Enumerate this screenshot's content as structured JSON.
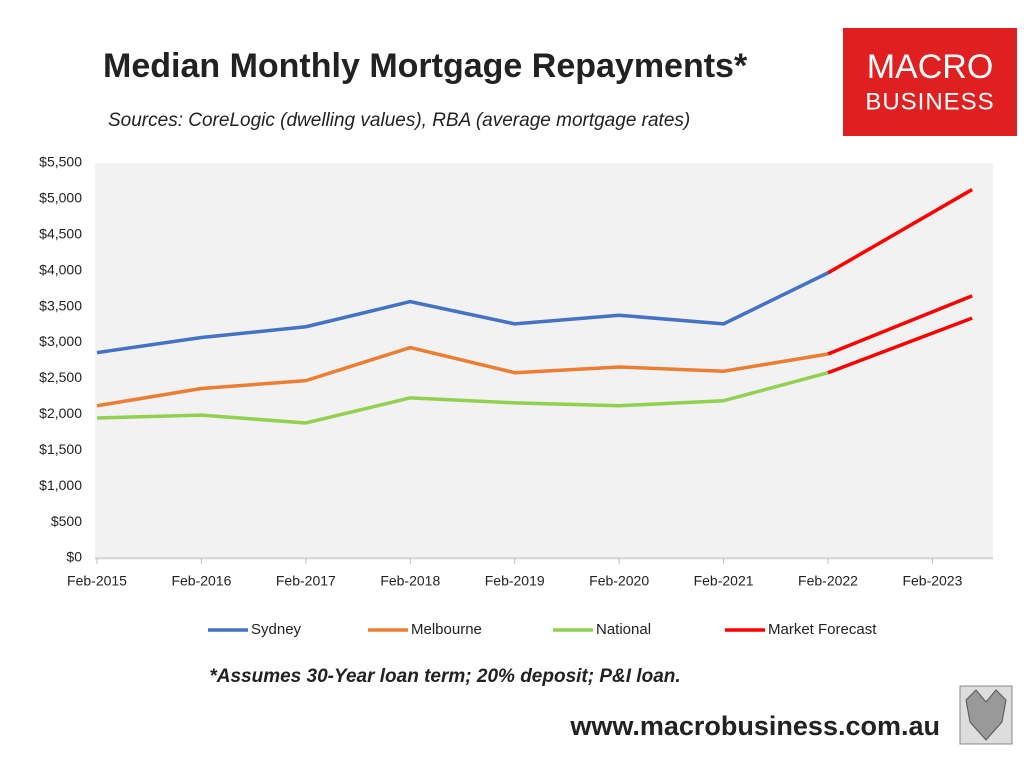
{
  "chart_data": {
    "type": "line",
    "title": "Median Monthly Mortgage Repayments*",
    "subtitle": "Sources: CoreLogic (dwelling values), RBA (average mortgage rates)",
    "footnote": "*Assumes 30-Year loan term; 20% deposit; P&I loan.",
    "website": "www.macrobusiness.com.au",
    "logo": [
      "MACRO",
      "BUSINESS"
    ],
    "xlim": [
      2015,
      2023.58
    ],
    "xticks": [
      {
        "value": 2015,
        "label": "Feb-2015"
      },
      {
        "value": 2016,
        "label": "Feb-2016"
      },
      {
        "value": 2017,
        "label": "Feb-2017"
      },
      {
        "value": 2018,
        "label": "Feb-2018"
      },
      {
        "value": 2019,
        "label": "Feb-2019"
      },
      {
        "value": 2020,
        "label": "Feb-2020"
      },
      {
        "value": 2021,
        "label": "Feb-2021"
      },
      {
        "value": 2022,
        "label": "Feb-2022"
      },
      {
        "value": 2023,
        "label": "Feb-2023"
      }
    ],
    "ylim": [
      0,
      5500
    ],
    "yticks": [
      {
        "value": 0,
        "label": "$0"
      },
      {
        "value": 500,
        "label": "$500"
      },
      {
        "value": 1000,
        "label": "$1,000"
      },
      {
        "value": 1500,
        "label": "$1,500"
      },
      {
        "value": 2000,
        "label": "$2,000"
      },
      {
        "value": 2500,
        "label": "$2,500"
      },
      {
        "value": 3000,
        "label": "$3,000"
      },
      {
        "value": 3500,
        "label": "$3,500"
      },
      {
        "value": 4000,
        "label": "$4,000"
      },
      {
        "value": 4500,
        "label": "$4,500"
      },
      {
        "value": 5000,
        "label": "$5,000"
      },
      {
        "value": 5500,
        "label": "$5,500"
      }
    ],
    "legend": "bottom",
    "series": [
      {
        "name": "Sydney",
        "color": "#4472c4",
        "x": [
          2015,
          2016,
          2017,
          2018,
          2019,
          2020,
          2021,
          2022
        ],
        "values": [
          2860,
          3070,
          3220,
          3570,
          3260,
          3380,
          3260,
          3970
        ]
      },
      {
        "name": "Melbourne",
        "color": "#ed7d31",
        "x": [
          2015,
          2016,
          2017,
          2018,
          2019,
          2020,
          2021,
          2022
        ],
        "values": [
          2120,
          2360,
          2470,
          2930,
          2580,
          2660,
          2600,
          2840
        ]
      },
      {
        "name": "National",
        "color": "#92d050",
        "x": [
          2015,
          2016,
          2017,
          2018,
          2019,
          2020,
          2021,
          2022
        ],
        "values": [
          1950,
          1990,
          1880,
          2230,
          2160,
          2120,
          2190,
          2580
        ]
      },
      {
        "name": "Market Forecast",
        "color": "#ff0000",
        "x": [
          2022,
          2023.38,
          null,
          2022,
          2023.38,
          null,
          2022,
          2023.38
        ],
        "values": [
          3970,
          5130,
          null,
          2840,
          3650,
          null,
          2580,
          3340
        ]
      }
    ]
  }
}
